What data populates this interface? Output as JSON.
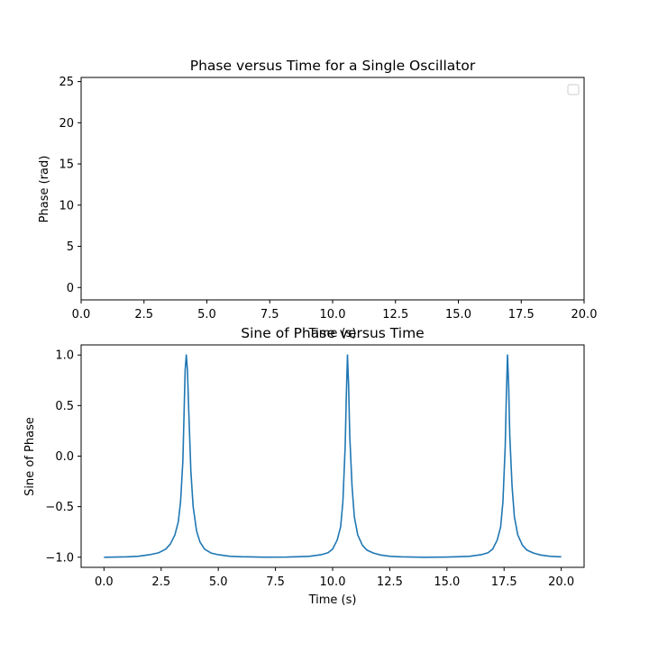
{
  "chart_data": [
    {
      "type": "line",
      "title": "Phase versus Time for a Single Oscillator",
      "xlabel": "Time (s)",
      "ylabel": "Phase (rad)",
      "xlim": [
        0,
        20
      ],
      "ylim": [
        -1.5,
        25.5
      ],
      "xticks": [
        0,
        2.5,
        5,
        7.5,
        10,
        12.5,
        15,
        17.5,
        20
      ],
      "xtick_labels": [
        "0.0",
        "2.5",
        "5.0",
        "7.5",
        "10.0",
        "12.5",
        "15.0",
        "17.5",
        "20.0"
      ],
      "yticks": [
        0,
        5,
        10,
        15,
        20,
        25
      ],
      "ytick_labels": [
        "0",
        "5",
        "10",
        "15",
        "20",
        "25"
      ],
      "grid": false,
      "legend": {
        "placement": "top-right",
        "entries": []
      },
      "series": []
    },
    {
      "type": "line",
      "title": "Sine of Phase versus Time",
      "xlabel": "Time (s)",
      "ylabel": "Sine of Phase",
      "xlim": [
        -1,
        21
      ],
      "ylim": [
        -1.1,
        1.1
      ],
      "xticks": [
        0,
        2.5,
        5,
        7.5,
        10,
        12.5,
        15,
        17.5,
        20
      ],
      "xtick_labels": [
        "0.0",
        "2.5",
        "5.0",
        "7.5",
        "10.0",
        "12.5",
        "15.0",
        "17.5",
        "20.0"
      ],
      "yticks": [
        -1,
        -0.5,
        0,
        0.5,
        1
      ],
      "ytick_labels": [
        "−1.0",
        "−0.5",
        "0.0",
        "0.5",
        "1.0"
      ],
      "grid": false,
      "line_color": "#1f77b4",
      "series": [
        {
          "x": [
            0.0,
            0.5,
            1.0,
            1.5,
            2.0,
            2.4,
            2.7,
            2.9,
            3.1,
            3.25,
            3.35,
            3.45,
            3.5,
            3.55,
            3.6,
            3.65,
            3.7,
            3.8,
            3.9,
            4.05,
            4.2,
            4.4,
            4.7,
            5.0,
            5.5,
            6.0,
            7.0,
            8.0,
            8.5,
            9.0,
            9.5,
            9.8,
            10.0,
            10.2,
            10.35,
            10.45,
            10.55,
            10.6,
            10.65,
            10.7,
            10.75,
            10.85,
            10.95,
            11.1,
            11.3,
            11.5,
            11.8,
            12.1,
            12.5,
            13.0,
            14.0,
            15.0,
            15.5,
            16.0,
            16.5,
            16.8,
            17.0,
            17.2,
            17.35,
            17.45,
            17.55,
            17.6,
            17.65,
            17.7,
            17.75,
            17.85,
            17.95,
            18.1,
            18.3,
            18.5,
            18.8,
            19.1,
            19.5,
            20.0
          ],
          "y": [
            -1.0,
            -0.998,
            -0.996,
            -0.99,
            -0.975,
            -0.955,
            -0.92,
            -0.87,
            -0.78,
            -0.65,
            -0.45,
            -0.05,
            0.4,
            0.85,
            1.0,
            0.85,
            0.5,
            -0.15,
            -0.5,
            -0.74,
            -0.85,
            -0.92,
            -0.96,
            -0.975,
            -0.99,
            -0.995,
            -0.999,
            -0.998,
            -0.995,
            -0.99,
            -0.975,
            -0.955,
            -0.92,
            -0.83,
            -0.7,
            -0.45,
            0.1,
            0.6,
            1.0,
            0.7,
            0.2,
            -0.3,
            -0.6,
            -0.78,
            -0.88,
            -0.93,
            -0.96,
            -0.978,
            -0.99,
            -0.996,
            -1.0,
            -0.998,
            -0.995,
            -0.99,
            -0.975,
            -0.955,
            -0.92,
            -0.83,
            -0.7,
            -0.45,
            0.1,
            0.6,
            1.0,
            0.7,
            0.2,
            -0.3,
            -0.6,
            -0.78,
            -0.88,
            -0.93,
            -0.96,
            -0.978,
            -0.99,
            -0.996
          ]
        }
      ]
    }
  ]
}
